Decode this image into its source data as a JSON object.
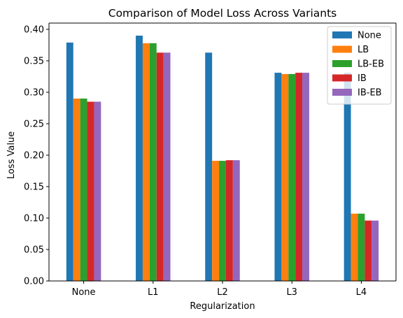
{
  "chart_data": {
    "type": "bar",
    "title": "Comparison of Model Loss Across Variants",
    "xlabel": "Regularization",
    "ylabel": "Loss Value",
    "categories": [
      "None",
      "L1",
      "L2",
      "L3",
      "L4"
    ],
    "ylim": [
      0,
      0.41
    ],
    "yticks": [
      "0.00",
      "0.05",
      "0.10",
      "0.15",
      "0.20",
      "0.25",
      "0.30",
      "0.35",
      "0.40"
    ],
    "grid": false,
    "legend_position": "top-right",
    "series": [
      {
        "name": "None",
        "color": "#1f77b4",
        "values": [
          0.379,
          0.39,
          0.363,
          0.331,
          0.331
        ]
      },
      {
        "name": "LB",
        "color": "#ff7f0e",
        "values": [
          0.29,
          0.378,
          0.191,
          0.329,
          0.107
        ]
      },
      {
        "name": "LB-EB",
        "color": "#2ca02c",
        "values": [
          0.29,
          0.378,
          0.191,
          0.329,
          0.107
        ]
      },
      {
        "name": "IB",
        "color": "#d62728",
        "values": [
          0.285,
          0.363,
          0.192,
          0.331,
          0.096
        ]
      },
      {
        "name": "IB-EB",
        "color": "#9467bd",
        "values": [
          0.285,
          0.363,
          0.192,
          0.331,
          0.096
        ]
      }
    ]
  }
}
